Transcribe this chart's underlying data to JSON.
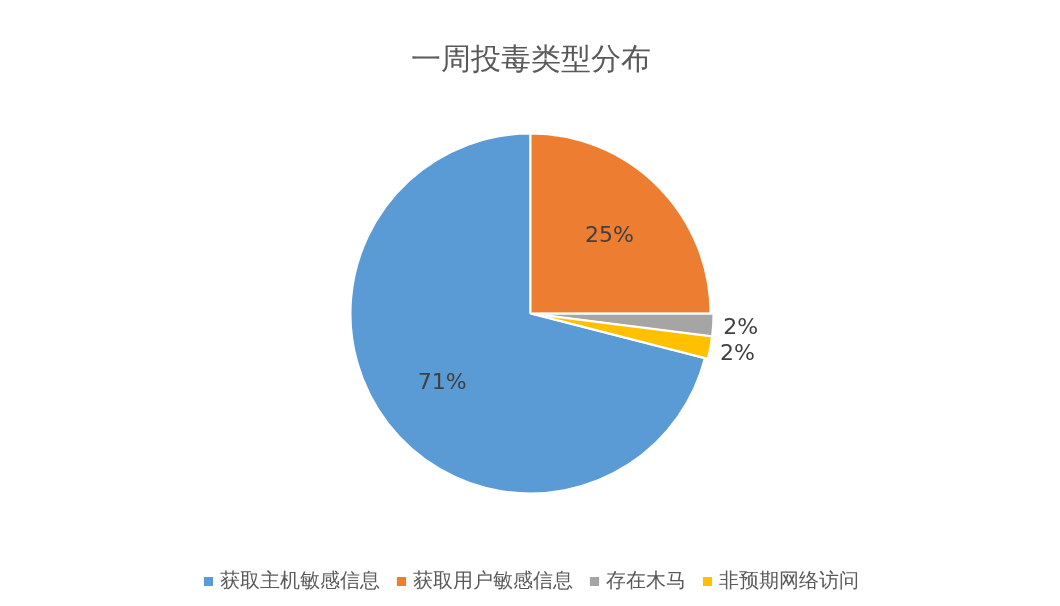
{
  "chart_data": {
    "type": "pie",
    "title": "一周投毒类型分布",
    "categories": [
      "获取主机敏感信息",
      "获取用户敏感信息",
      "存在木马",
      "非预期网络访问"
    ],
    "values": [
      71,
      25,
      2,
      2
    ],
    "colors": [
      "#5b9bd5",
      "#ed7d31",
      "#a5a5a5",
      "#ffc000"
    ],
    "value_labels": [
      "71%",
      "25%",
      "2%",
      "2%"
    ],
    "legend": "bottom"
  }
}
